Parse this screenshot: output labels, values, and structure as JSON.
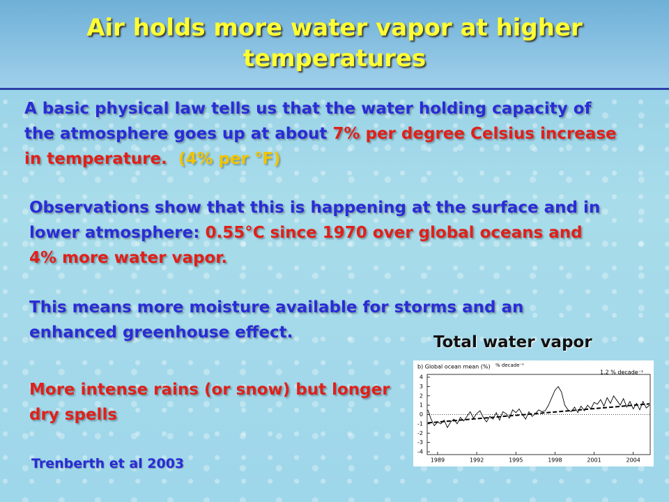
{
  "slide": {
    "title": "Air holds more water vapor at higher temperatures",
    "paragraphs": [
      {
        "runs": [
          {
            "text": "A basic physical law tells us that the water holding capacity of the atmosphere goes up at about ",
            "color": "#2b2bd6"
          },
          {
            "text": "7% per degree Celsius increase in temperature.",
            "color": "#e0201a"
          },
          {
            "text": "  (4% per °F)",
            "color": "#f2c400"
          }
        ]
      },
      {
        "runs": [
          {
            "text": "Observations show that this is happening at the surface and in lower atmosphere: ",
            "color": "#2b2bd6"
          },
          {
            "text": "0.55°C since 1970 over global oceans and 4% more water vapor.",
            "color": "#e0201a"
          }
        ]
      },
      {
        "runs": [
          {
            "text": "This means more moisture available for storms and an enhanced greenhouse effect.",
            "color": "#2b2bd6"
          }
        ]
      },
      {
        "runs": [
          {
            "text": "More intense rains (or snow) but longer dry spells",
            "color": "#e0201a"
          }
        ]
      }
    ],
    "citation": "Trenberth et al 2003",
    "figure_caption": "Total water vapor"
  },
  "chart_data": {
    "type": "line",
    "title": "b) Global ocean mean (%)",
    "annotations": [
      "% decade⁻¹",
      "1.2 % decade⁻¹"
    ],
    "x": [
      1988.25,
      1988.5,
      1988.75,
      1989,
      1989.25,
      1989.5,
      1989.75,
      1990,
      1990.25,
      1990.5,
      1990.75,
      1991,
      1991.25,
      1991.5,
      1991.75,
      1992,
      1992.25,
      1992.5,
      1992.75,
      1993,
      1993.25,
      1993.5,
      1993.75,
      1994,
      1994.25,
      1994.5,
      1994.75,
      1995,
      1995.25,
      1995.5,
      1995.75,
      1996,
      1996.25,
      1996.5,
      1996.75,
      1997,
      1997.25,
      1997.5,
      1997.75,
      1998,
      1998.25,
      1998.5,
      1998.75,
      1999,
      1999.25,
      1999.5,
      1999.75,
      2000,
      2000.25,
      2000.5,
      2000.75,
      2001,
      2001.25,
      2001.5,
      2001.75,
      2002,
      2002.25,
      2002.5,
      2002.75,
      2003,
      2003.25,
      2003.5,
      2003.75,
      2004,
      2004.25,
      2004.5,
      2004.75,
      2005,
      2005.25
    ],
    "series": [
      {
        "color": "#000000",
        "values": [
          0.5,
          -0.5,
          -1.2,
          -0.8,
          -1.0,
          -0.6,
          -1.4,
          -0.8,
          -0.5,
          -1.0,
          -0.3,
          -0.7,
          -0.2,
          0.3,
          -0.4,
          0.1,
          0.4,
          -0.3,
          -0.8,
          -0.2,
          -0.5,
          0.2,
          -0.6,
          0.3,
          0.1,
          -0.4,
          0.5,
          0.2,
          0.6,
          0.0,
          -0.5,
          0.3,
          -0.2,
          0.1,
          0.5,
          0.3,
          0.4,
          1.0,
          1.8,
          2.6,
          3.0,
          2.4,
          1.0,
          0.5,
          0.3,
          0.8,
          0.2,
          0.9,
          0.4,
          1.0,
          0.6,
          1.3,
          1.1,
          1.6,
          0.9,
          1.8,
          1.2,
          2.0,
          1.5,
          1.0,
          1.7,
          0.8,
          1.4,
          0.6,
          1.2,
          0.5,
          1.4,
          0.7,
          1.0
        ]
      }
    ],
    "trend": {
      "color": "#000000",
      "x": [
        1988.25,
        2005.25
      ],
      "values": [
        -0.9,
        1.14
      ]
    },
    "xlim": [
      1988.2,
      2005.3
    ],
    "xticks": [
      1989,
      1992,
      1995,
      1998,
      2001,
      2004
    ],
    "ylim": [
      -4,
      4
    ],
    "yticks": [
      -4,
      -3,
      -2,
      -1,
      0,
      1,
      2,
      3,
      4
    ]
  }
}
